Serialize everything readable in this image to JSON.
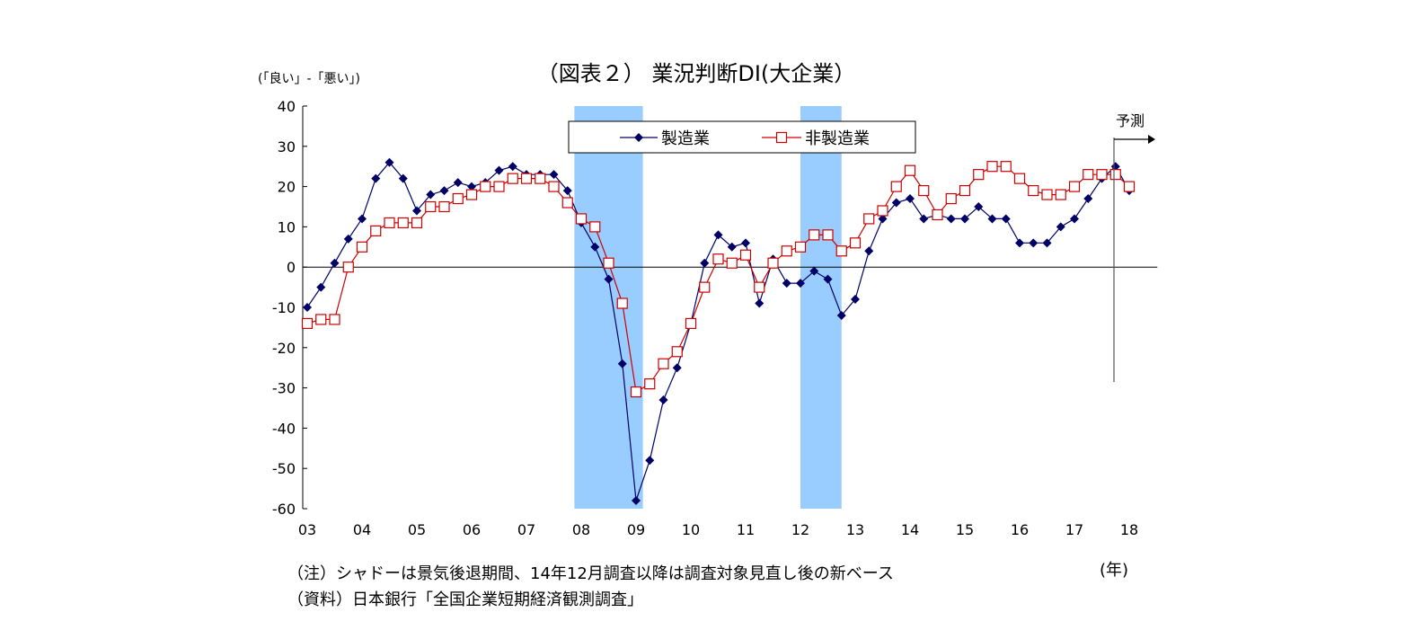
{
  "chart_data": {
    "type": "line",
    "title": "（図表２） 業況判断DI(大企業）",
    "ylabel": "(「良い」-「悪い」)",
    "xlabel": "(年)",
    "ylim": [
      -60,
      40
    ],
    "yticks": [
      40,
      30,
      20,
      10,
      0,
      -10,
      -20,
      -30,
      -40,
      -50,
      -60
    ],
    "xlim": [
      2003,
      2018.25
    ],
    "x_tick_labels": [
      "03",
      "04",
      "05",
      "06",
      "07",
      "08",
      "09",
      "10",
      "11",
      "12",
      "13",
      "14",
      "15",
      "16",
      "17",
      "18"
    ],
    "forecast_label": "予測",
    "recessions": [
      [
        2007.875,
        2009.125
      ],
      [
        2012.0,
        2012.75
      ]
    ],
    "x_start": 2003,
    "x_step": 0.25,
    "series": [
      {
        "name": "製造業",
        "color": "#000066",
        "marker": "diamond",
        "values": [
          -10,
          -5,
          1,
          7,
          12,
          22,
          26,
          22,
          14,
          18,
          19,
          21,
          20,
          21,
          24,
          25,
          23,
          23,
          23,
          19,
          11,
          5,
          -3,
          -24,
          -58,
          -48,
          -33,
          -25,
          -14,
          1,
          8,
          5,
          6,
          -9,
          2,
          -4,
          -4,
          -1,
          -3,
          -12,
          -8,
          4,
          12,
          16,
          17,
          12,
          13,
          12,
          12,
          15,
          12,
          12,
          6,
          6,
          6,
          10,
          12,
          17,
          22,
          25,
          19
        ]
      },
      {
        "name": "非製造業",
        "color": "#cc0000",
        "marker": "square",
        "values": [
          -14,
          -13,
          -13,
          0,
          5,
          9,
          11,
          11,
          11,
          15,
          15,
          17,
          18,
          20,
          20,
          22,
          22,
          22,
          20,
          16,
          12,
          10,
          1,
          -9,
          -31,
          -29,
          -24,
          -21,
          -14,
          -5,
          2,
          1,
          3,
          -5,
          1,
          4,
          5,
          8,
          8,
          4,
          6,
          12,
          14,
          20,
          24,
          19,
          13,
          17,
          19,
          23,
          25,
          25,
          22,
          19,
          18,
          18,
          20,
          23,
          23,
          23,
          20
        ]
      }
    ]
  },
  "notes": {
    "line1": "（注）シャドーは景気後退期間、14年12月調査以降は調査対象見直し後の新ベース",
    "line2": "（資料）日本銀行「全国企業短期経済観測調査」"
  }
}
